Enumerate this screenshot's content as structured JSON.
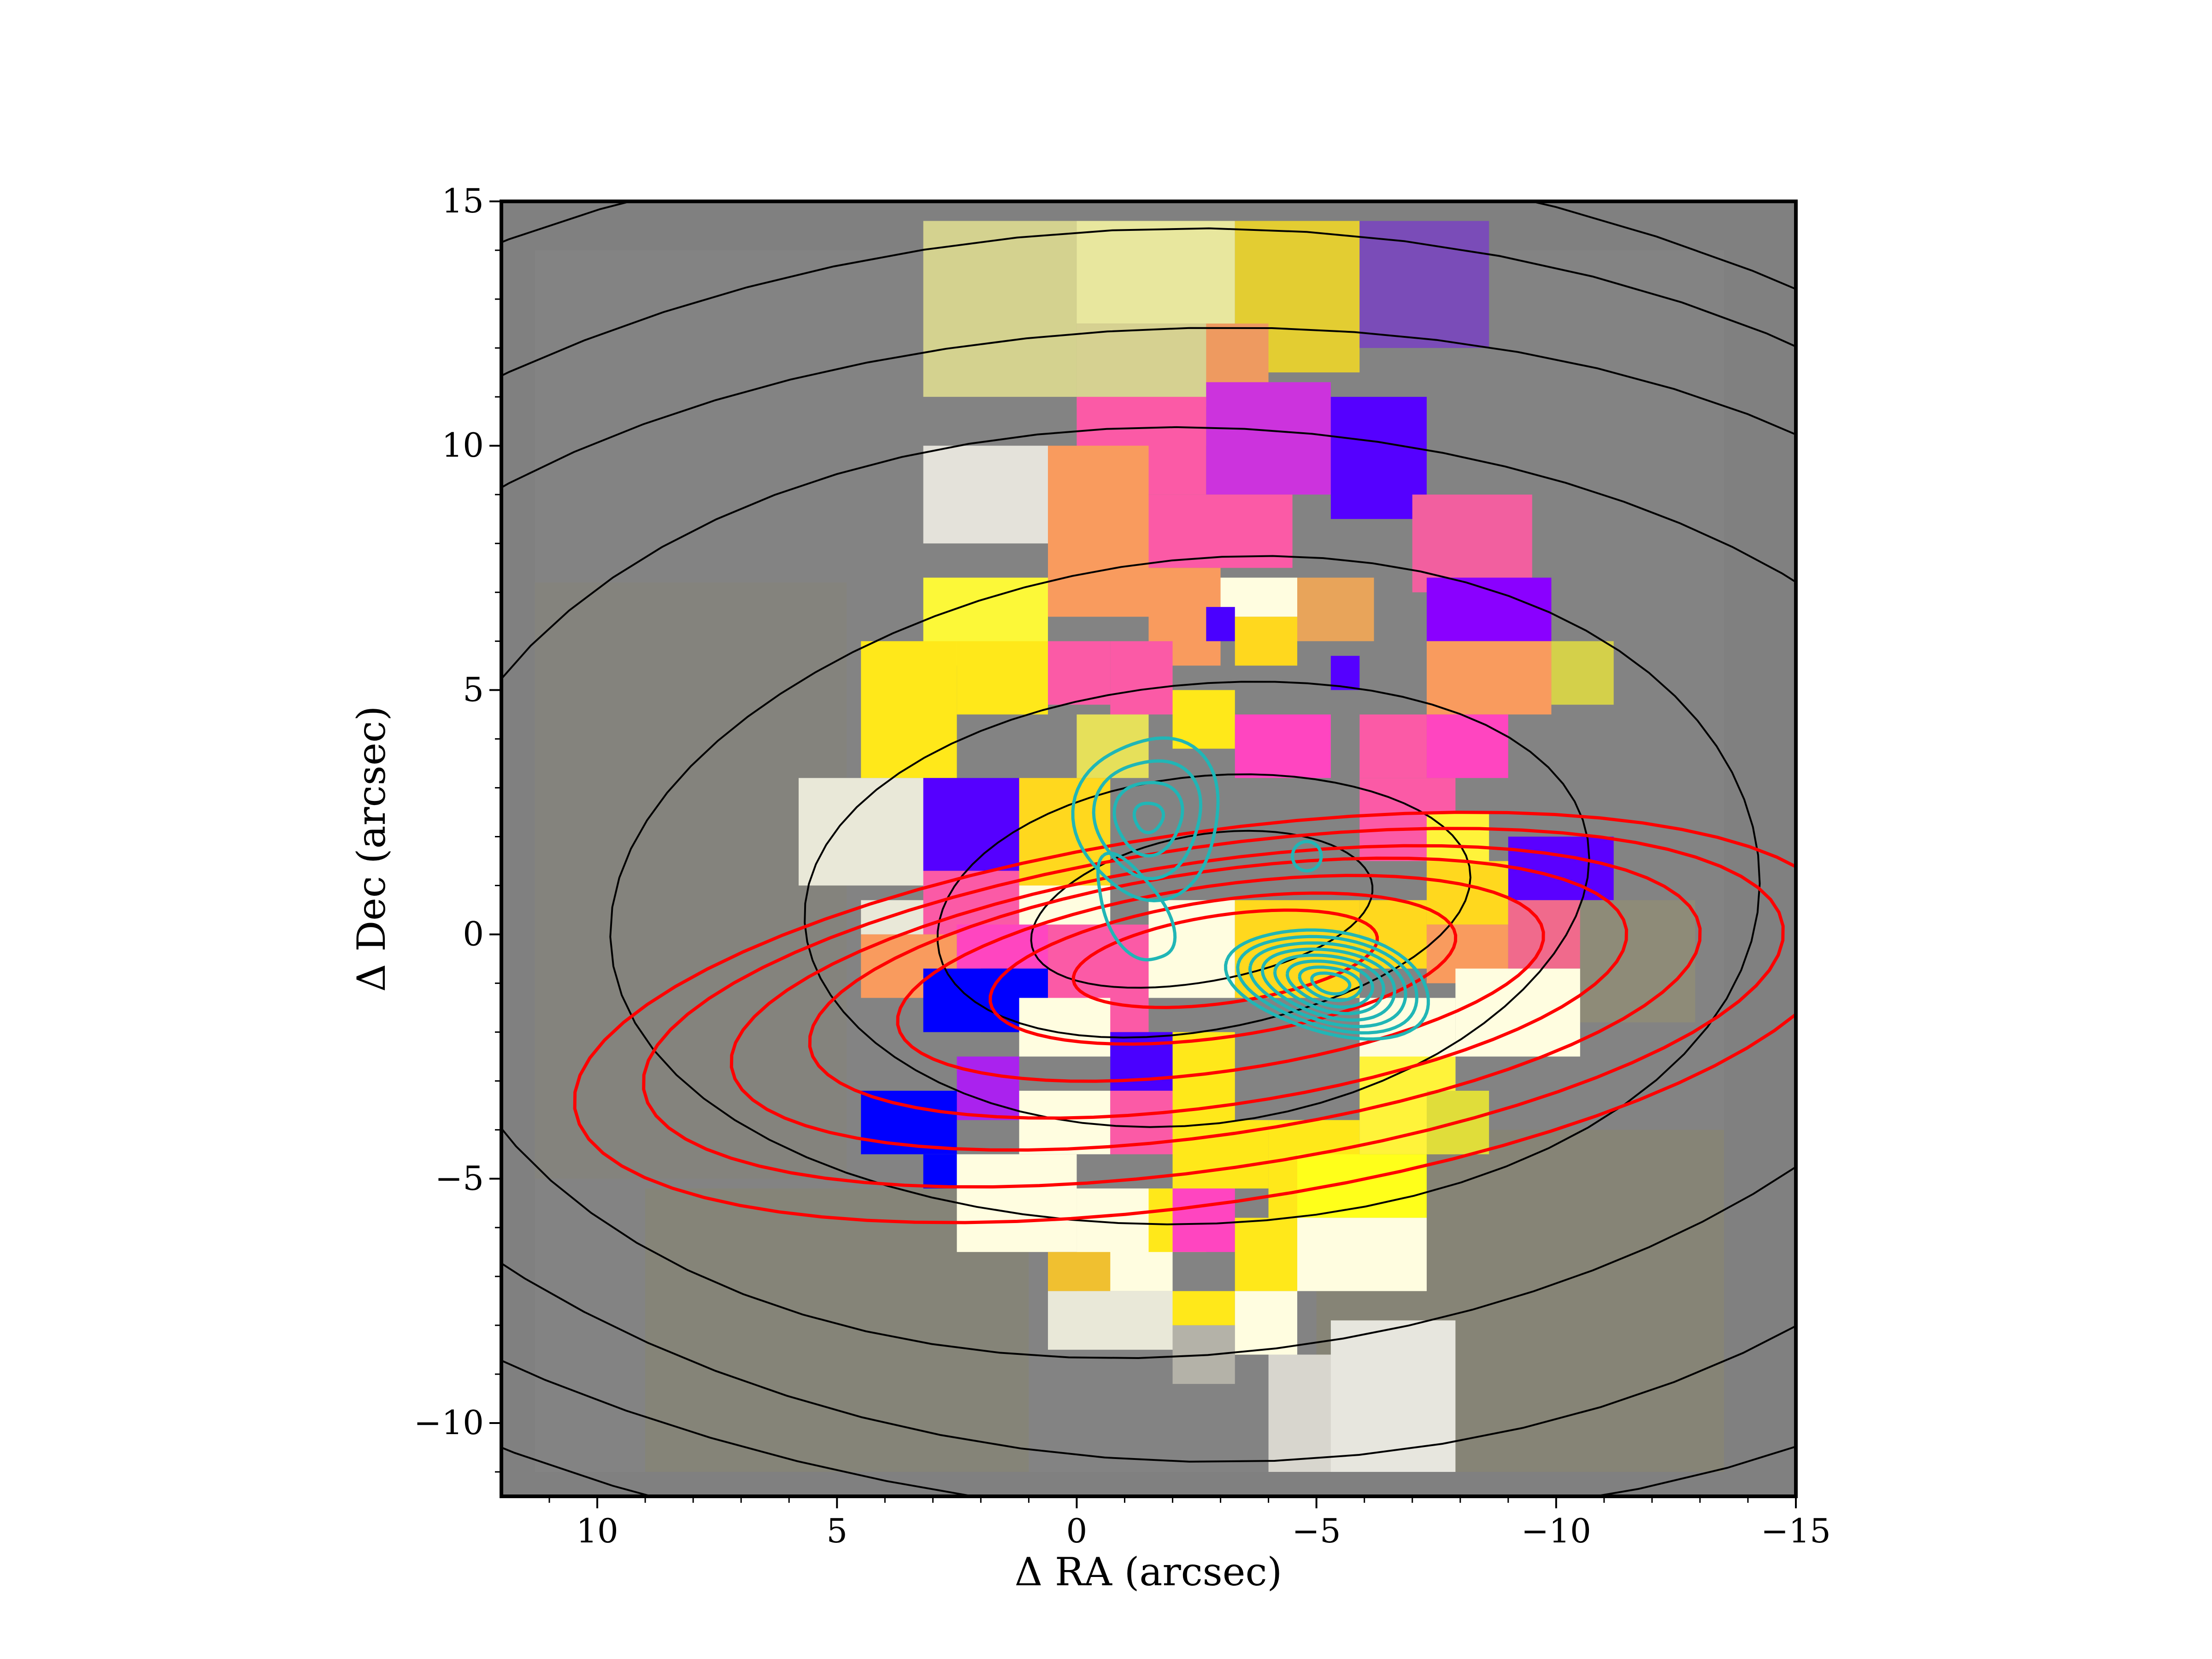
{
  "chart_data": {
    "type": "heatmap",
    "title": "",
    "xlabel": "Δ RA (arcsec)",
    "ylabel": "Δ Dec (arcsec)",
    "xlim": [
      12,
      -15
    ],
    "ylim": [
      -11.5,
      15
    ],
    "x_ticks": [
      10,
      5,
      0,
      -5,
      -10,
      -15
    ],
    "y_ticks": [
      15,
      10,
      5,
      0,
      -5,
      -10
    ],
    "x_tick_labels": [
      "10",
      "5",
      "0",
      "−5",
      "−10",
      "−15"
    ],
    "y_tick_labels": [
      "15",
      "10",
      "5",
      "0",
      "−5",
      "−10"
    ],
    "grid": false,
    "background_color": "#808080",
    "cells": [
      {
        "x0": 3.2,
        "x1": 0.0,
        "y0": 11.0,
        "y1": 14.6,
        "color": "#d4d28f"
      },
      {
        "x0": 0.0,
        "x1": -3.3,
        "y0": 12.5,
        "y1": 14.6,
        "color": "#e8e79e"
      },
      {
        "x0": 0.0,
        "x1": -3.3,
        "y0": 10.8,
        "y1": 12.5,
        "color": "#d6d191"
      },
      {
        "x0": -3.3,
        "x1": -5.9,
        "y0": 11.5,
        "y1": 14.6,
        "color": "#e3cd32"
      },
      {
        "x0": -5.9,
        "x1": -8.6,
        "y0": 12.0,
        "y1": 14.6,
        "color": "#7a4cb8"
      },
      {
        "x0": -2.7,
        "x1": -4.0,
        "y0": 10.0,
        "y1": 12.5,
        "color": "#ee9a60"
      },
      {
        "x0": 0.0,
        "x1": -2.7,
        "y0": 9.0,
        "y1": 11.0,
        "color": "#fb5aa6"
      },
      {
        "x0": -2.7,
        "x1": -5.3,
        "y0": 9.0,
        "y1": 11.3,
        "color": "#cc33dd"
      },
      {
        "x0": -5.3,
        "x1": -7.3,
        "y0": 8.5,
        "y1": 11.0,
        "color": "#5500ff"
      },
      {
        "x0": 3.2,
        "x1": 0.6,
        "y0": 8.0,
        "y1": 10.0,
        "color": "#e4e2da"
      },
      {
        "x0": 0.6,
        "x1": -1.5,
        "y0": 6.5,
        "y1": 10.0,
        "color": "#f99b5e"
      },
      {
        "x0": -1.5,
        "x1": -4.5,
        "y0": 7.5,
        "y1": 9.0,
        "color": "#fb5aa6"
      },
      {
        "x0": -7.0,
        "x1": -9.5,
        "y0": 7.0,
        "y1": 9.0,
        "color": "#f25f9f"
      },
      {
        "x0": 3.2,
        "x1": 0.6,
        "y0": 5.5,
        "y1": 7.3,
        "color": "#fcf838"
      },
      {
        "x0": -1.5,
        "x1": -3.0,
        "y0": 5.5,
        "y1": 7.5,
        "color": "#f99b5e"
      },
      {
        "x0": -3.0,
        "x1": -4.6,
        "y0": 6.5,
        "y1": 7.3,
        "color": "#fffde0"
      },
      {
        "x0": -4.6,
        "x1": -6.2,
        "y0": 6.0,
        "y1": 7.3,
        "color": "#e8a45a"
      },
      {
        "x0": -7.3,
        "x1": -9.9,
        "y0": 6.0,
        "y1": 7.3,
        "color": "#8a00ff"
      },
      {
        "x0": 4.5,
        "x1": 2.5,
        "y0": 3.2,
        "y1": 6.0,
        "color": "#ffe81a"
      },
      {
        "x0": 2.5,
        "x1": 0.6,
        "y0": 4.5,
        "y1": 6.0,
        "color": "#ffe81a"
      },
      {
        "x0": 0.6,
        "x1": -0.7,
        "y0": 4.7,
        "y1": 6.0,
        "color": "#fb5aa6"
      },
      {
        "x0": -0.7,
        "x1": -2.0,
        "y0": 4.5,
        "y1": 6.0,
        "color": "#fb5aa6"
      },
      {
        "x0": -2.7,
        "x1": -3.3,
        "y0": 6.0,
        "y1": 6.7,
        "color": "#4a00ff"
      },
      {
        "x0": -3.3,
        "x1": -4.6,
        "y0": 5.5,
        "y1": 6.5,
        "color": "#ffd81e"
      },
      {
        "x0": -5.3,
        "x1": -5.9,
        "y0": 5.0,
        "y1": 5.7,
        "color": "#5500ff"
      },
      {
        "x0": -7.3,
        "x1": -9.9,
        "y0": 4.5,
        "y1": 6.0,
        "color": "#f99b5e"
      },
      {
        "x0": -9.9,
        "x1": -11.2,
        "y0": 4.7,
        "y1": 6.0,
        "color": "#d4d04a"
      },
      {
        "x0": 0.0,
        "x1": -1.5,
        "y0": 3.2,
        "y1": 4.5,
        "color": "#e6e05a"
      },
      {
        "x0": -2.0,
        "x1": -3.3,
        "y0": 3.8,
        "y1": 5.0,
        "color": "#ffe81a"
      },
      {
        "x0": -3.3,
        "x1": -5.3,
        "y0": 3.2,
        "y1": 4.5,
        "color": "#ff45c0"
      },
      {
        "x0": -5.9,
        "x1": -7.3,
        "y0": 3.2,
        "y1": 4.5,
        "color": "#fb5aa6"
      },
      {
        "x0": -7.3,
        "x1": -9.0,
        "y0": 3.2,
        "y1": 4.5,
        "color": "#ff45c0"
      },
      {
        "x0": 5.8,
        "x1": 3.2,
        "y0": 1.0,
        "y1": 3.2,
        "color": "#e9e8d8"
      },
      {
        "x0": 3.2,
        "x1": 1.2,
        "y0": 1.3,
        "y1": 3.2,
        "color": "#5500ff"
      },
      {
        "x0": 1.2,
        "x1": -0.7,
        "y0": 1.0,
        "y1": 3.2,
        "color": "#ffd81e"
      },
      {
        "x0": -5.9,
        "x1": -7.9,
        "y0": 1.5,
        "y1": 3.2,
        "color": "#fb5aa6"
      },
      {
        "x0": -7.3,
        "x1": -8.6,
        "y0": 1.5,
        "y1": 2.5,
        "color": "#fff33a"
      },
      {
        "x0": -9.0,
        "x1": -11.2,
        "y0": 0.7,
        "y1": 2.0,
        "color": "#5a00ff"
      },
      {
        "x0": -7.3,
        "x1": -9.0,
        "y0": 0.2,
        "y1": 1.5,
        "color": "#ffd81e"
      },
      {
        "x0": 4.5,
        "x1": 3.2,
        "y0": 0.0,
        "y1": 0.7,
        "color": "#e9e8d8"
      },
      {
        "x0": 3.2,
        "x1": 1.2,
        "y0": 0.0,
        "y1": 1.3,
        "color": "#fb5aa6"
      },
      {
        "x0": 1.2,
        "x1": -0.7,
        "y0": 0.2,
        "y1": 1.0,
        "color": "#fffde0"
      },
      {
        "x0": 4.5,
        "x1": 2.5,
        "y0": -1.3,
        "y1": 0.0,
        "color": "#f99b5e"
      },
      {
        "x0": 2.5,
        "x1": 0.6,
        "y0": -0.7,
        "y1": 0.2,
        "color": "#ff45c0"
      },
      {
        "x0": 2.0,
        "x1": 0.6,
        "y0": -2.0,
        "y1": -0.7,
        "color": "#0000ff"
      },
      {
        "x0": 0.6,
        "x1": -1.5,
        "y0": -2.0,
        "y1": 0.2,
        "color": "#fb5aa6"
      },
      {
        "x0": -1.5,
        "x1": -3.3,
        "y0": -1.3,
        "y1": 0.7,
        "color": "#fffde0"
      },
      {
        "x0": -3.3,
        "x1": -5.9,
        "y0": -1.3,
        "y1": 0.7,
        "color": "#ffd81e"
      },
      {
        "x0": -5.9,
        "x1": -7.3,
        "y0": -0.7,
        "y1": 0.7,
        "color": "#ffd81e"
      },
      {
        "x0": -7.3,
        "x1": -9.0,
        "y0": -1.0,
        "y1": 0.2,
        "color": "#f99b5e"
      },
      {
        "x0": -9.0,
        "x1": -10.5,
        "y0": -0.7,
        "y1": 0.7,
        "color": "#f06a8c"
      },
      {
        "x0": -10.5,
        "x1": -12.9,
        "y0": -1.8,
        "y1": 0.7,
        "color": "#8e8b78"
      },
      {
        "x0": 3.2,
        "x1": 1.2,
        "y0": -2.0,
        "y1": -0.7,
        "color": "#0000ff"
      },
      {
        "x0": 1.2,
        "x1": -0.7,
        "y0": -2.5,
        "y1": -1.3,
        "color": "#fffde0"
      },
      {
        "x0": -0.7,
        "x1": -2.0,
        "y0": -3.2,
        "y1": -2.0,
        "color": "#4a00ff"
      },
      {
        "x0": -2.0,
        "x1": -3.3,
        "y0": -3.8,
        "y1": -2.0,
        "color": "#ffe81a"
      },
      {
        "x0": -5.9,
        "x1": -7.9,
        "y0": -3.2,
        "y1": -1.3,
        "color": "#fffde0"
      },
      {
        "x0": -7.9,
        "x1": -10.5,
        "y0": -2.5,
        "y1": -0.7,
        "color": "#fffde0"
      },
      {
        "x0": 2.5,
        "x1": 1.2,
        "y0": -3.8,
        "y1": -2.5,
        "color": "#aa22ee"
      },
      {
        "x0": 4.5,
        "x1": 2.5,
        "y0": -4.5,
        "y1": -3.2,
        "color": "#0000ff"
      },
      {
        "x0": 3.2,
        "x1": 2.5,
        "y0": -5.2,
        "y1": -4.5,
        "color": "#0000ff"
      },
      {
        "x0": 1.2,
        "x1": -0.7,
        "y0": -4.5,
        "y1": -3.2,
        "color": "#fffde0"
      },
      {
        "x0": -0.7,
        "x1": -2.0,
        "y0": -4.5,
        "y1": -3.2,
        "color": "#fb5aa6"
      },
      {
        "x0": -2.0,
        "x1": -4.0,
        "y0": -5.2,
        "y1": -3.8,
        "color": "#ffe81a"
      },
      {
        "x0": -4.0,
        "x1": -5.9,
        "y0": -5.8,
        "y1": -3.8,
        "color": "#ffe81a"
      },
      {
        "x0": -5.9,
        "x1": -7.9,
        "y0": -4.5,
        "y1": -2.5,
        "color": "#fff33a"
      },
      {
        "x0": -7.3,
        "x1": -8.6,
        "y0": -4.5,
        "y1": -3.2,
        "color": "#e0dd3a"
      },
      {
        "x0": 2.5,
        "x1": 0.0,
        "y0": -6.5,
        "y1": -4.5,
        "color": "#fffde0"
      },
      {
        "x0": 0.0,
        "x1": -2.0,
        "y0": -7.3,
        "y1": -5.2,
        "color": "#fffde0"
      },
      {
        "x0": -1.5,
        "x1": -2.7,
        "y0": -6.5,
        "y1": -5.2,
        "color": "#ffe81a"
      },
      {
        "x0": -2.0,
        "x1": -3.3,
        "y0": -6.5,
        "y1": -5.2,
        "color": "#ff45c0"
      },
      {
        "x0": -3.3,
        "x1": -4.6,
        "y0": -7.3,
        "y1": -5.8,
        "color": "#ffe81a"
      },
      {
        "x0": -4.6,
        "x1": -7.3,
        "y0": -5.8,
        "y1": -4.5,
        "color": "#ffff1a"
      },
      {
        "x0": -4.6,
        "x1": -7.3,
        "y0": -7.3,
        "y1": -5.8,
        "color": "#fffde0"
      },
      {
        "x0": 0.6,
        "x1": -0.7,
        "y0": -7.3,
        "y1": -6.5,
        "color": "#f0c030"
      },
      {
        "x0": 0.6,
        "x1": -2.0,
        "y0": -8.5,
        "y1": -7.3,
        "color": "#e9e8d8"
      },
      {
        "x0": -2.0,
        "x1": -3.3,
        "y0": -8.0,
        "y1": -7.3,
        "color": "#ffe81a"
      },
      {
        "x0": -2.0,
        "x1": -3.3,
        "y0": -9.2,
        "y1": -8.0,
        "color": "#b4b2a8"
      },
      {
        "x0": -3.3,
        "x1": -4.6,
        "y0": -8.6,
        "y1": -7.3,
        "color": "#fffde0"
      },
      {
        "x0": -4.0,
        "x1": -5.9,
        "y0": -11.0,
        "y1": -8.6,
        "color": "#d8d6ce"
      },
      {
        "x0": -5.3,
        "x1": -7.9,
        "y0": -11.0,
        "y1": -7.9,
        "color": "#e7e6de"
      }
    ],
    "contours": [
      {
        "name": "black",
        "color": "#000000",
        "levels": 8
      },
      {
        "name": "red",
        "color": "#ff0000",
        "levels": 7
      },
      {
        "name": "cyan",
        "color": "#20b6b6",
        "levels": 8
      }
    ]
  }
}
